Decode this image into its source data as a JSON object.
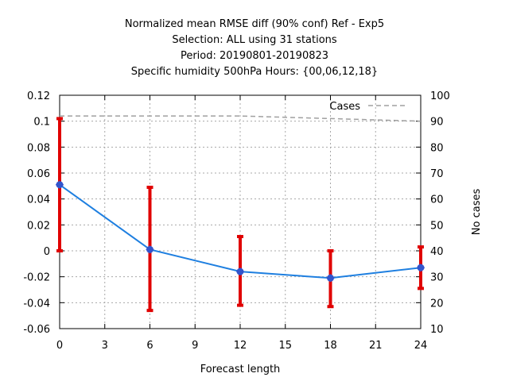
{
  "chart_data": {
    "type": "line",
    "title_lines": [
      "Normalized mean RMSE diff (90% conf) Ref - Exp5",
      "Selection: ALL using    31 stations",
      "Period: 20190801-20190823",
      "Specific humidity 500hPa   Hours: {00,06,12,18}"
    ],
    "xlabel": "Forecast length",
    "ylabel_right": "No cases",
    "xlim": [
      0,
      24
    ],
    "ylim": [
      -0.06,
      0.12
    ],
    "y2lim": [
      10,
      100
    ],
    "xticks": [
      0,
      3,
      6,
      9,
      12,
      15,
      18,
      21,
      24
    ],
    "yticks": [
      -0.06,
      -0.04,
      -0.02,
      0,
      0.02,
      0.04,
      0.06,
      0.08,
      0.1,
      0.12
    ],
    "y2ticks": [
      10,
      20,
      30,
      40,
      50,
      60,
      70,
      80,
      90,
      100
    ],
    "ytick_labels": [
      "-0.06",
      "-0.04",
      "-0.02",
      "0",
      "0.02",
      "0.04",
      "0.06",
      "0.08",
      "0.1",
      "0.12"
    ],
    "grid": true,
    "colors": {
      "line": "#1e7fe0",
      "marker": "#3355cc",
      "errorbar": "#e00000",
      "cases": "#a0a0a0"
    },
    "series": {
      "x": [
        0,
        6,
        12,
        18,
        24
      ],
      "y": [
        0.051,
        0.001,
        -0.016,
        -0.021,
        -0.013
      ],
      "ci_low": [
        0.0,
        -0.046,
        -0.042,
        -0.043,
        -0.029
      ],
      "ci_high": [
        0.102,
        0.049,
        0.011,
        0.0,
        0.003
      ]
    },
    "cases": {
      "name": "Cases",
      "x": [
        0,
        6,
        12,
        18,
        24
      ],
      "y": [
        92,
        92,
        92,
        91,
        90
      ]
    },
    "legend_position": "top-right"
  }
}
